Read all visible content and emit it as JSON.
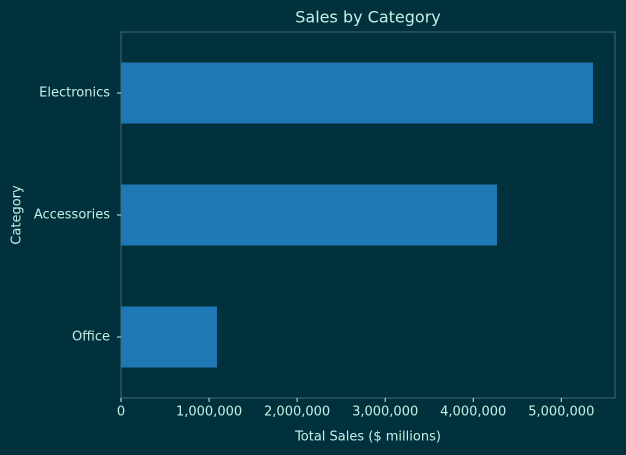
{
  "chart_data": {
    "type": "barh",
    "title": "Sales by Category",
    "x_label": "Total Sales ($ millions)",
    "y_label": "Category",
    "categories": [
      "Electronics",
      "Accessories",
      "Office"
    ],
    "values": [
      5360000,
      4270000,
      1090000
    ],
    "color": "#1f77b4",
    "xlim": [
      0,
      5610000
    ],
    "xticks": [
      0,
      {
        "value": 1000000,
        "label": "1,000,000"
      },
      {
        "value": 2000000,
        "label": "2,000,000"
      },
      {
        "value": 3000000,
        "label": "3,000,000"
      },
      {
        "value": 4000000,
        "label": "4,000,000"
      },
      {
        "value": 5000000,
        "label": "5,000,000"
      }
    ],
    "grid": false
  }
}
